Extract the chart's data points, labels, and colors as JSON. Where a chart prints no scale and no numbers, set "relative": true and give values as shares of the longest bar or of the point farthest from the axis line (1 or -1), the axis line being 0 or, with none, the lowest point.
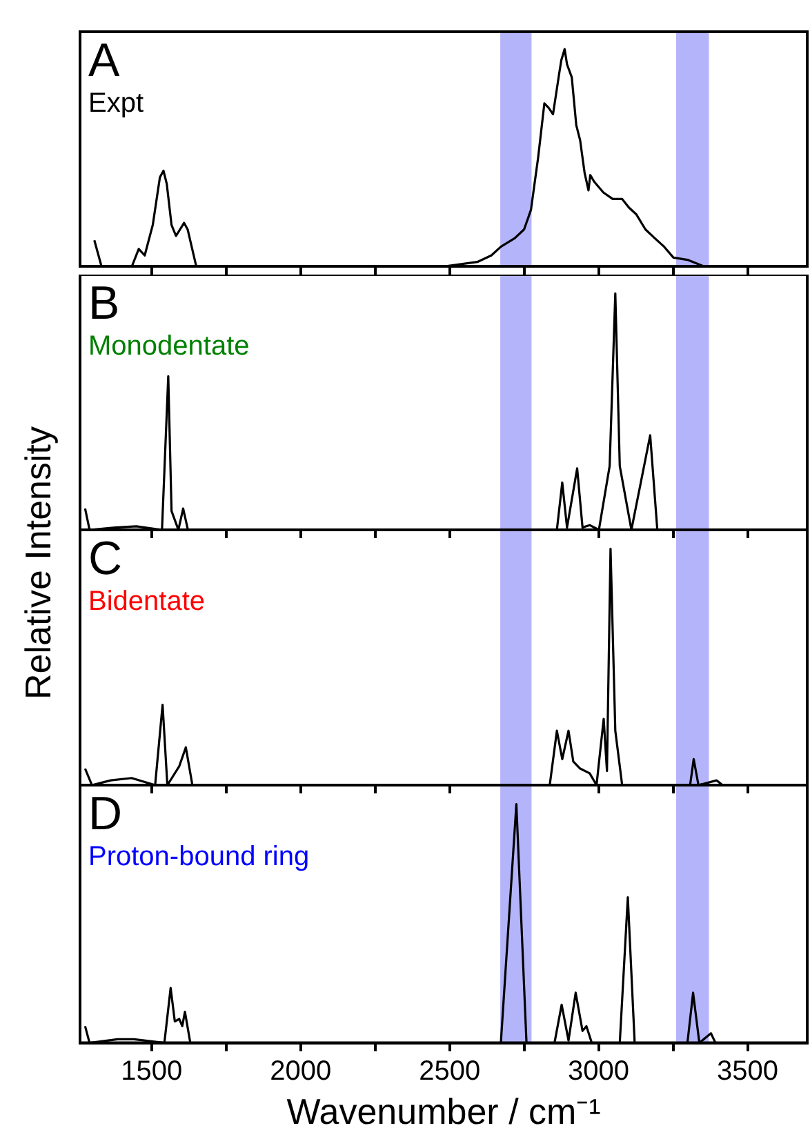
{
  "chart_data": [
    {
      "type": "line",
      "title": "A",
      "subtitle": "Expt",
      "ylabel": "Relative Intensity",
      "relative": true,
      "xlim": [
        1260,
        3700
      ],
      "xticks": [
        1500,
        {
          "value": 1750,
          "label": null
        },
        2000,
        {
          "value": 2250,
          "label": null
        },
        2500,
        {
          "value": 2750,
          "label": null
        },
        3000,
        {
          "value": 3250,
          "label": null
        },
        3500
      ],
      "tick_labels": false,
      "grid": false,
      "legend": false,
      "marker": "none",
      "line_style": "solid",
      "bands": [
        {
          "axis": "x",
          "from": 2670,
          "to": 2775,
          "color": "#b4b4fa"
        },
        {
          "axis": "x",
          "from": 3260,
          "to": 3370,
          "color": "#b4b4fa"
        }
      ],
      "series": [
        {
          "color": "#000000",
          "x": [
            1308,
            1332,
            1434,
            1457,
            1477,
            1504,
            1528,
            1540,
            1551,
            1567,
            1582,
            1609,
            1621,
            1650,
            2484,
            2593,
            2640,
            2672,
            2719,
            2750,
            2773,
            2797,
            2818,
            2832,
            2847,
            2868,
            2875,
            2886,
            2894,
            2910,
            2925,
            2938,
            2953,
            2966,
            2972,
            2985,
            3016,
            3047,
            3079,
            3102,
            3126,
            3157,
            3188,
            3220,
            3251,
            3298,
            3353,
            3666
          ],
          "values": [
            0.12,
            0,
            0,
            0.08,
            0.05,
            0.19,
            0.41,
            0.44,
            0.38,
            0.19,
            0.14,
            0.2,
            0.17,
            0,
            0,
            0.02,
            0.05,
            0.09,
            0.13,
            0.17,
            0.26,
            0.5,
            0.75,
            0.73,
            0.7,
            0.89,
            0.95,
            1,
            0.93,
            0.87,
            0.65,
            0.58,
            0.43,
            0.35,
            0.42,
            0.39,
            0.34,
            0.31,
            0.31,
            0.27,
            0.24,
            0.17,
            0.13,
            0.09,
            0.04,
            0.03,
            0,
            0
          ]
        }
      ]
    },
    {
      "type": "line",
      "title": "B",
      "subtitle": "Monodentate",
      "relative": true,
      "xlim": [
        1260,
        3700
      ],
      "xticks": [
        1500,
        {
          "value": 1750,
          "label": null
        },
        2000,
        {
          "value": 2250,
          "label": null
        },
        2500,
        {
          "value": 2750,
          "label": null
        },
        3000,
        {
          "value": 3250,
          "label": null
        },
        3500
      ],
      "tick_labels": false,
      "grid": false,
      "legend": false,
      "marker": "none",
      "line_style": "solid",
      "bands": [
        {
          "axis": "x",
          "from": 2670,
          "to": 2775,
          "color": "#b4b4fa"
        },
        {
          "axis": "x",
          "from": 3260,
          "to": 3370,
          "color": "#b4b4fa"
        }
      ],
      "series": [
        {
          "color": "#000000",
          "x": [
            1277,
            1292,
            1378,
            1449,
            1535,
            1556,
            1567,
            1590,
            1606,
            1622,
            2860,
            2878,
            2894,
            2928,
            2946,
            2970,
            3001,
            3037,
            3056,
            3071,
            3110,
            3173,
            3197,
            3666
          ],
          "values": [
            0.09,
            0,
            0.01,
            0.015,
            0,
            0.65,
            0.08,
            0,
            0.09,
            0,
            0,
            0.2,
            0.01,
            0.26,
            0.01,
            0.02,
            0,
            0.27,
            1,
            0.27,
            0,
            0.4,
            0,
            0
          ]
        }
      ]
    },
    {
      "type": "line",
      "title": "C",
      "subtitle": "Bidentate",
      "relative": true,
      "xlim": [
        1260,
        3700
      ],
      "xticks": [
        1500,
        {
          "value": 1750,
          "label": null
        },
        2000,
        {
          "value": 2250,
          "label": null
        },
        2500,
        {
          "value": 2750,
          "label": null
        },
        3000,
        {
          "value": 3250,
          "label": null
        },
        3500
      ],
      "tick_labels": false,
      "grid": false,
      "legend": false,
      "marker": "none",
      "line_style": "solid",
      "bands": [
        {
          "axis": "x",
          "from": 2670,
          "to": 2775,
          "color": "#b4b4fa"
        },
        {
          "axis": "x",
          "from": 3260,
          "to": 3370,
          "color": "#b4b4fa"
        }
      ],
      "series": [
        {
          "color": "#000000",
          "x": [
            1277,
            1300,
            1363,
            1433,
            1512,
            1537,
            1553,
            1593,
            1615,
            1637,
            2836,
            2860,
            2878,
            2899,
            2915,
            2938,
            2970,
            2993,
            3017,
            3028,
            3040,
            3056,
            3079,
            3307,
            3319,
            3335,
            3396,
            3416,
            3666
          ],
          "values": [
            0.07,
            0,
            0.02,
            0.03,
            0,
            0.34,
            0,
            0.08,
            0.16,
            0,
            0,
            0.23,
            0.11,
            0.23,
            0.1,
            0.07,
            0.05,
            0,
            0.28,
            0.06,
            1,
            0.23,
            0,
            0,
            0.11,
            0,
            0.02,
            0,
            0
          ]
        }
      ]
    },
    {
      "type": "line",
      "title": "D",
      "subtitle": "Proton-bound ring",
      "xlabel": "Wavenumber / cm⁻¹",
      "relative": true,
      "xlim": [
        1260,
        3700
      ],
      "xticks": [
        1500,
        {
          "value": 1750,
          "label": null
        },
        2000,
        {
          "value": 2250,
          "label": null
        },
        2500,
        {
          "value": 2750,
          "label": null
        },
        3000,
        {
          "value": 3250,
          "label": null
        },
        3500
      ],
      "tick_labels": "x",
      "grid": false,
      "legend": false,
      "marker": "none",
      "line_style": "solid",
      "bands": [
        {
          "axis": "x",
          "from": 2670,
          "to": 2775,
          "color": "#b4b4fa"
        },
        {
          "axis": "x",
          "from": 3260,
          "to": 3370,
          "color": "#b4b4fa"
        }
      ],
      "series": [
        {
          "color": "#000000",
          "x": [
            1277,
            1292,
            1386,
            1441,
            1543,
            1564,
            1578,
            1593,
            1603,
            1612,
            1630,
            2672,
            2724,
            2758,
            2852,
            2876,
            2899,
            2923,
            2946,
            2959,
            2977,
            3071,
            3098,
            3121,
            3298,
            3317,
            3338,
            3377,
            3392,
            3666
          ],
          "values": [
            0.07,
            0,
            0.015,
            0.015,
            0,
            0.23,
            0.09,
            0.1,
            0.07,
            0.13,
            0,
            0,
            1,
            0,
            0,
            0.16,
            0.01,
            0.21,
            0.05,
            0.07,
            0,
            0,
            0.61,
            0,
            0,
            0.21,
            0,
            0.04,
            0,
            0
          ]
        }
      ]
    }
  ]
}
